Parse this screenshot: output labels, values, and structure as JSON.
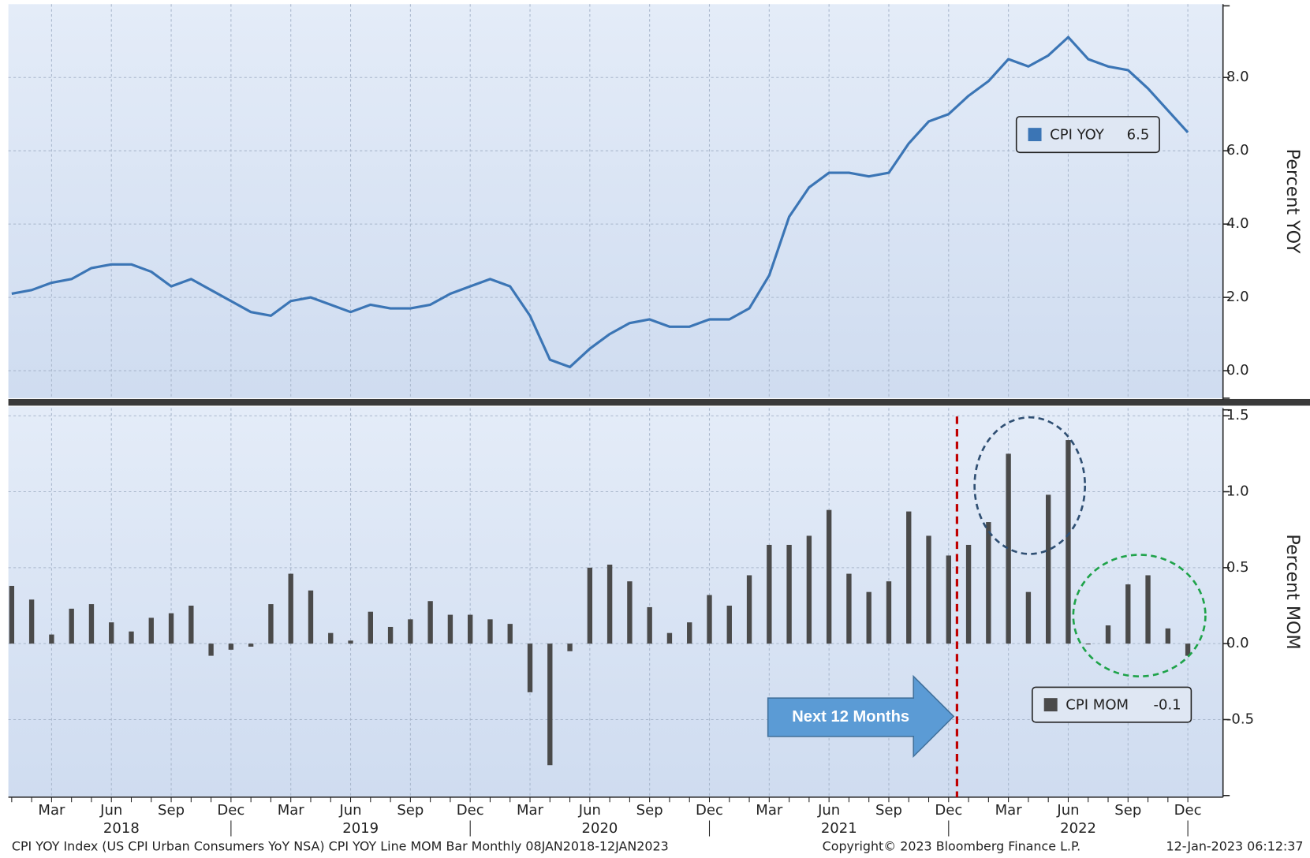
{
  "chart_data": [
    {
      "type": "line",
      "y_label": "Percent YOY",
      "series": [
        {
          "name": "CPI YOY",
          "color": "#3b75b5",
          "legend_value": 6.5,
          "values": [
            2.1,
            2.2,
            2.4,
            2.5,
            2.8,
            2.9,
            2.9,
            2.7,
            2.3,
            2.5,
            2.2,
            1.9,
            1.6,
            1.5,
            1.9,
            2.0,
            1.8,
            1.6,
            1.8,
            1.7,
            1.7,
            1.8,
            2.1,
            2.3,
            2.5,
            2.3,
            1.5,
            0.3,
            0.1,
            0.6,
            1.0,
            1.3,
            1.4,
            1.2,
            1.2,
            1.4,
            1.4,
            1.7,
            2.6,
            4.2,
            5.0,
            5.4,
            5.4,
            5.3,
            5.4,
            6.2,
            6.8,
            7.0,
            7.5,
            7.9,
            8.5,
            8.3,
            8.6,
            9.1,
            8.5,
            8.3,
            8.2,
            7.7,
            7.1,
            6.5
          ]
        }
      ],
      "ylim": [
        -0.75,
        10.0
      ],
      "yticks": [
        {
          "value": 0,
          "label": "0.0"
        },
        {
          "value": 2,
          "label": "2.0"
        },
        {
          "value": 4,
          "label": "4.0"
        },
        {
          "value": 6,
          "label": "6.0"
        },
        {
          "value": 8,
          "label": "8.0"
        }
      ],
      "grid": true
    },
    {
      "type": "bar",
      "y_label": "Percent MOM",
      "annotation": "Next 12 Months",
      "categories": [
        null,
        null,
        "Mar",
        null,
        null,
        "Jun",
        null,
        null,
        "Sep",
        null,
        null,
        "Dec",
        null,
        null,
        "Mar",
        null,
        null,
        "Jun",
        null,
        null,
        "Sep",
        null,
        null,
        "Dec",
        null,
        null,
        "Mar",
        null,
        null,
        "Jun",
        null,
        null,
        "Sep",
        null,
        null,
        "Dec",
        null,
        null,
        "Mar",
        null,
        null,
        "Jun",
        null,
        null,
        "Sep",
        null,
        null,
        "Dec",
        null,
        null,
        "Mar",
        null,
        null,
        "Jun",
        null,
        null,
        "Sep",
        null,
        null,
        "Dec"
      ],
      "year_labels": [
        "2018",
        "2019",
        "2020",
        "2021",
        "2022"
      ],
      "series": [
        {
          "name": "CPI MOM",
          "color": "#4a4a4a",
          "legend_value": -0.1,
          "values": [
            0.38,
            0.29,
            0.06,
            0.23,
            0.26,
            0.14,
            0.08,
            0.17,
            0.2,
            0.25,
            -0.08,
            -0.04,
            -0.02,
            0.26,
            0.46,
            0.35,
            0.07,
            0.02,
            0.21,
            0.11,
            0.16,
            0.28,
            0.19,
            0.19,
            0.16,
            0.13,
            -0.32,
            -0.8,
            -0.05,
            0.5,
            0.52,
            0.41,
            0.24,
            0.07,
            0.14,
            0.32,
            0.25,
            0.45,
            0.65,
            0.65,
            0.71,
            0.88,
            0.46,
            0.34,
            0.41,
            0.87,
            0.71,
            0.58,
            0.65,
            0.8,
            1.25,
            0.34,
            0.98,
            1.34,
            0.0,
            0.12,
            0.39,
            0.45,
            0.1,
            -0.08
          ]
        }
      ],
      "ylim": [
        -1.0,
        1.55
      ],
      "yticks": [
        {
          "value": -0.5,
          "label": "-0.5"
        },
        {
          "value": 0,
          "label": "0.0"
        },
        {
          "value": 0.5,
          "label": "0.5"
        },
        {
          "value": 1,
          "label": "1.0"
        },
        {
          "value": 1.5,
          "label": "1.5"
        }
      ],
      "grid": true
    }
  ],
  "footer": {
    "description": "CPI YOY Index (US CPI Urban Consumers YoY NSA) CPI YOY Line MOM Bar  Monthly 08JAN2018-12JAN2023",
    "copyright": "Copyright© 2023 Bloomberg Finance L.P.",
    "timestamp": "12-Jan-2023 06:12:37"
  }
}
